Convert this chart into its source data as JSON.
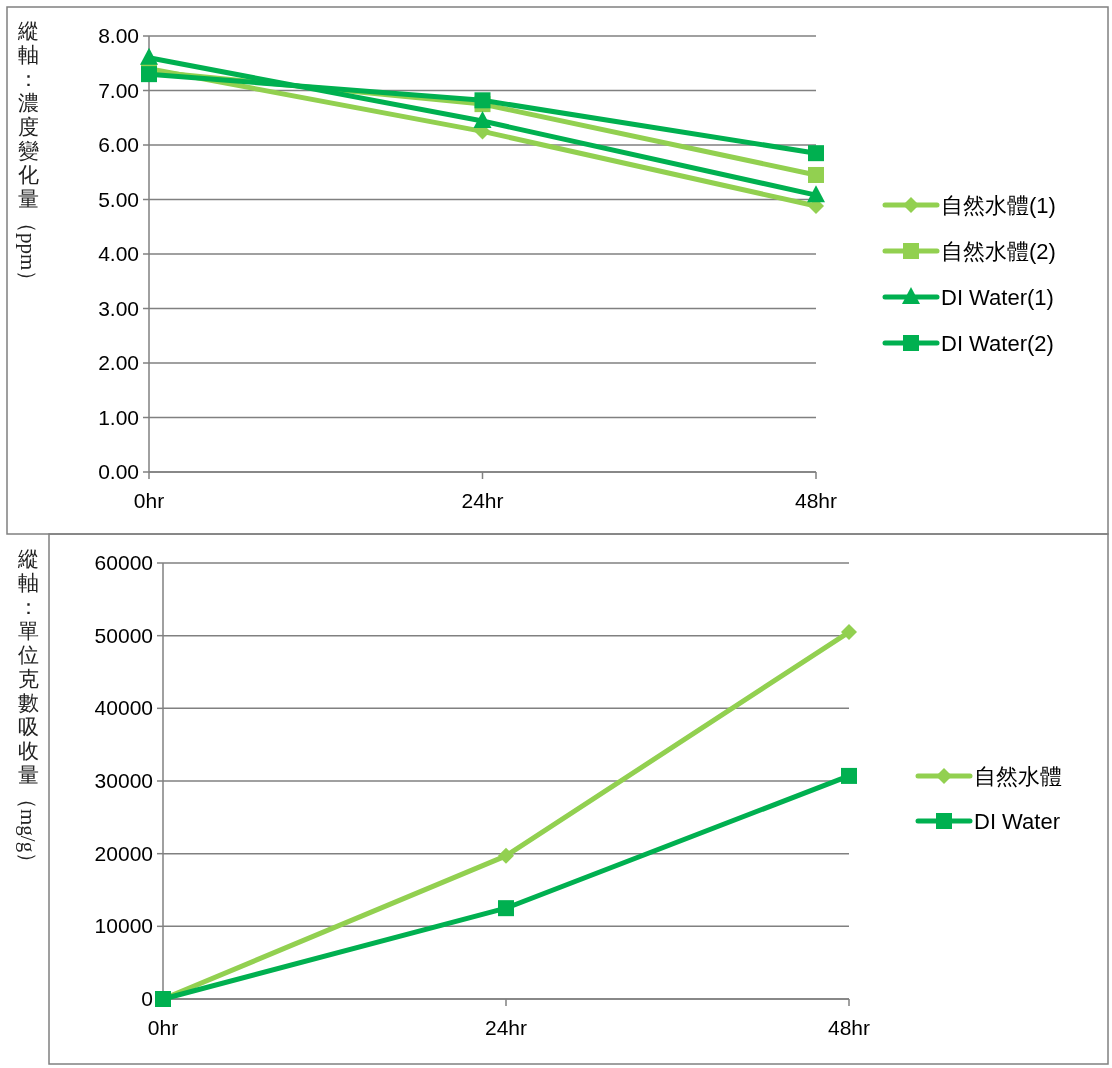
{
  "chart_data": [
    {
      "type": "line",
      "ylabel": "縱軸：濃度變化量（ppm）",
      "categories": [
        "0hr",
        "24hr",
        "48hr"
      ],
      "ylim": [
        0,
        8
      ],
      "yticks": [
        {
          "value": 0,
          "label": "0.00"
        },
        {
          "value": 1,
          "label": "1.00"
        },
        {
          "value": 2,
          "label": "2.00"
        },
        {
          "value": 3,
          "label": "3.00"
        },
        {
          "value": 4,
          "label": "4.00"
        },
        {
          "value": 5,
          "label": "5.00"
        },
        {
          "value": 6,
          "label": "6.00"
        },
        {
          "value": 7,
          "label": "7.00"
        },
        {
          "value": 8,
          "label": "8.00"
        }
      ],
      "grid": "y",
      "legend": "right",
      "series": [
        {
          "name": "自然水體(1)",
          "color": "#92d050",
          "marker": "diamond",
          "values": [
            7.4,
            6.25,
            4.88
          ]
        },
        {
          "name": "自然水體(2)",
          "color": "#92d050",
          "marker": "square",
          "values": [
            7.35,
            6.75,
            5.45
          ]
        },
        {
          "name": "DI Water(1)",
          "color": "#00b050",
          "marker": "triangle",
          "values": [
            7.6,
            6.44,
            5.08
          ]
        },
        {
          "name": "DI Water(2)",
          "color": "#00b050",
          "marker": "square",
          "values": [
            7.3,
            6.82,
            5.85
          ]
        }
      ]
    },
    {
      "type": "line",
      "ylabel": "縱軸：單位克數吸收量（mg/g）",
      "categories": [
        "0hr",
        "24hr",
        "48hr"
      ],
      "ylim": [
        0,
        60000
      ],
      "yticks": [
        0,
        10000,
        20000,
        30000,
        40000,
        50000,
        60000
      ],
      "grid": "y",
      "legend": "right",
      "series": [
        {
          "name": "自然水體",
          "color": "#92d050",
          "marker": "diamond",
          "values": [
            0,
            19700,
            50500
          ]
        },
        {
          "name": "DI Water",
          "color": "#00b050",
          "marker": "square",
          "values": [
            0,
            12500,
            30700
          ]
        }
      ]
    }
  ]
}
